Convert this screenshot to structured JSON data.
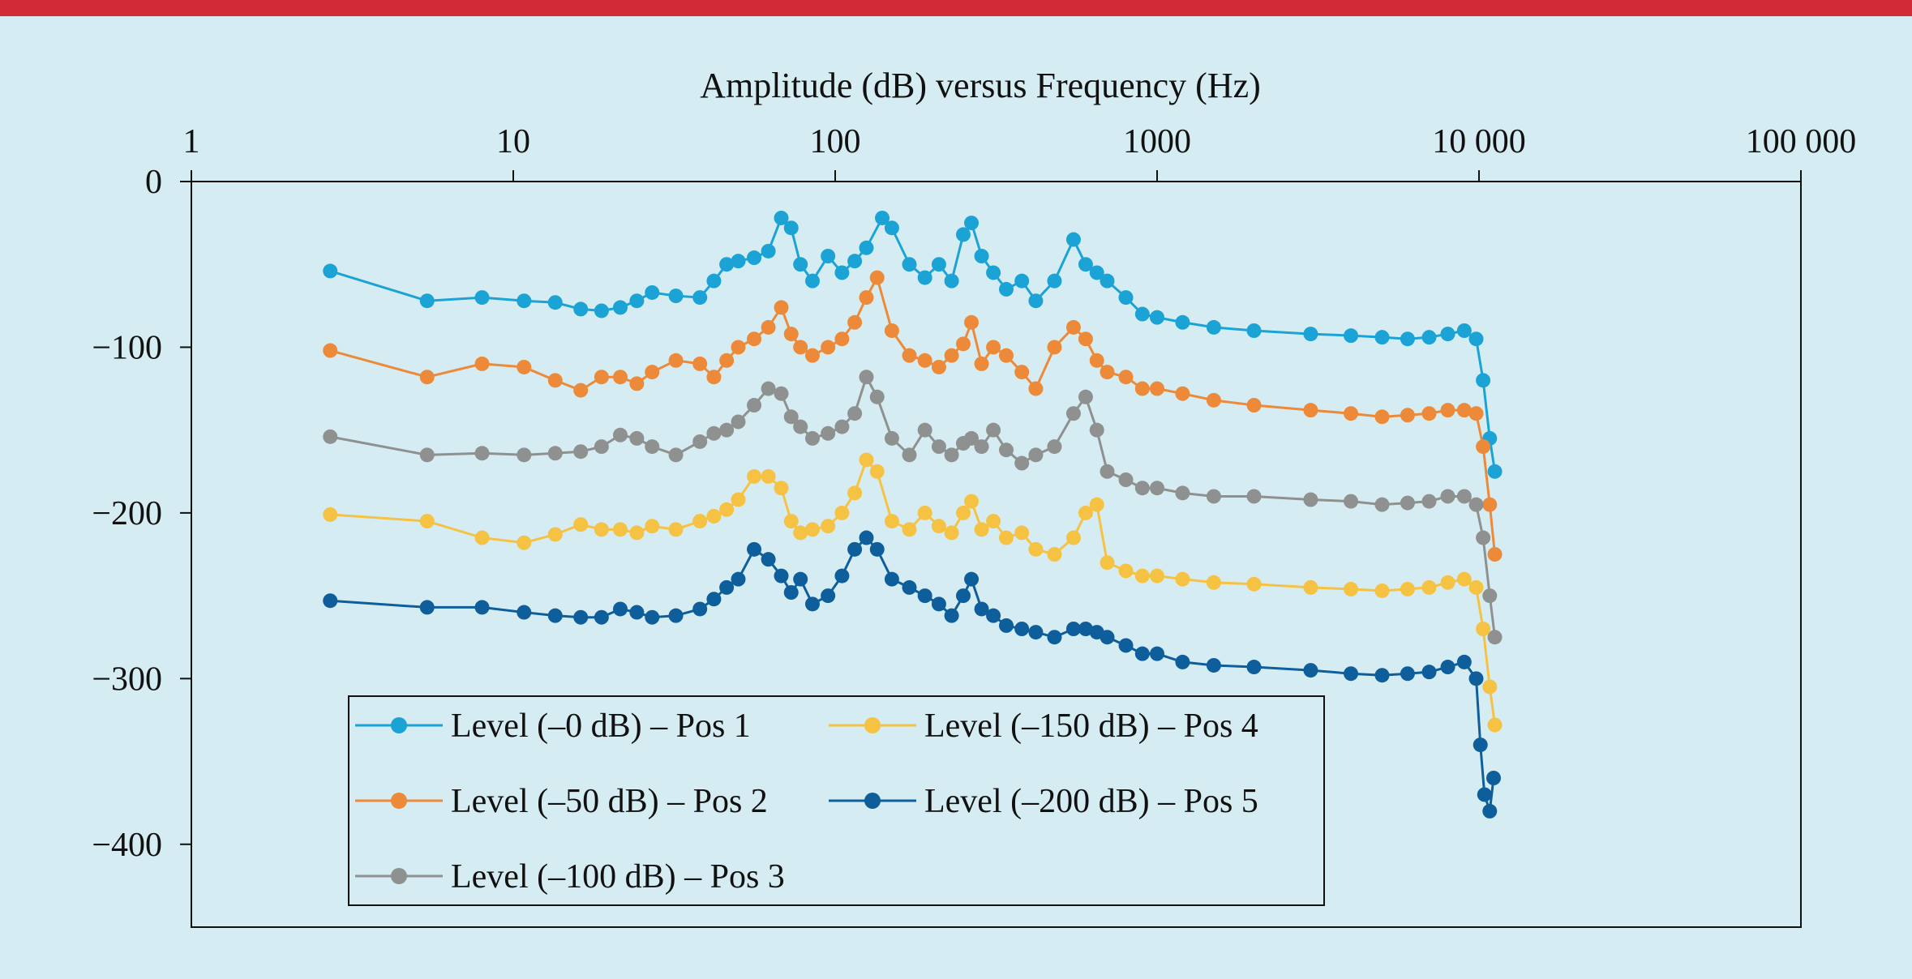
{
  "colors": {
    "background": "#d5edf2",
    "top_bar": "#d12b36",
    "axis": "#111111"
  },
  "chart_data": {
    "type": "line",
    "title": "Amplitude (dB) versus Frequency (Hz)",
    "xlabel": "",
    "ylabel": "",
    "x_scale": "log",
    "xlim": [
      1,
      100000
    ],
    "ylim": [
      -450,
      0
    ],
    "x_ticks": [
      1,
      10,
      100,
      1000,
      10000,
      100000
    ],
    "x_tick_labels": [
      "1",
      "10",
      "100",
      "1000",
      "10 000",
      "100 000"
    ],
    "y_ticks": [
      0,
      -100,
      -200,
      -300,
      -400
    ],
    "y_tick_labels": [
      "0",
      "−100",
      "−200",
      "−300",
      "−400"
    ],
    "grid": false,
    "legend_position": "bottom-left",
    "series": [
      {
        "name": "Level (–0 dB) – Pos 1",
        "color": "#1ba3d6",
        "x": [
          2.7,
          5.4,
          8,
          10.8,
          13.5,
          16.2,
          18.8,
          21.5,
          24.2,
          27,
          32,
          38,
          42,
          46,
          50,
          56,
          62,
          68,
          73,
          78,
          85,
          95,
          105,
          115,
          125,
          140,
          150,
          170,
          190,
          210,
          230,
          250,
          265,
          285,
          310,
          340,
          380,
          420,
          480,
          550,
          600,
          650,
          700,
          800,
          900,
          1000,
          1200,
          1500,
          2000,
          3000,
          4000,
          5000,
          6000,
          7000,
          8000,
          9000,
          9800,
          10300,
          10800,
          11200
        ],
        "y": [
          -54,
          -72,
          -70,
          -72,
          -73,
          -77,
          -78,
          -76,
          -72,
          -67,
          -69,
          -70,
          -60,
          -50,
          -48,
          -46,
          -42,
          -22,
          -28,
          -50,
          -60,
          -45,
          -55,
          -48,
          -40,
          -22,
          -28,
          -50,
          -58,
          -50,
          -60,
          -32,
          -25,
          -45,
          -55,
          -65,
          -60,
          -72,
          -60,
          -35,
          -50,
          -55,
          -60,
          -70,
          -80,
          -82,
          -85,
          -88,
          -90,
          -92,
          -93,
          -94,
          -95,
          -94,
          -92,
          -90,
          -95,
          -120,
          -155,
          -175
        ]
      },
      {
        "name": "Level (–50 dB) – Pos 2",
        "color": "#ec8a3a",
        "x": [
          2.7,
          5.4,
          8,
          10.8,
          13.5,
          16.2,
          18.8,
          21.5,
          24.2,
          27,
          32,
          38,
          42,
          46,
          50,
          56,
          62,
          68,
          73,
          78,
          85,
          95,
          105,
          115,
          125,
          135,
          150,
          170,
          190,
          210,
          230,
          250,
          265,
          285,
          310,
          340,
          380,
          420,
          480,
          550,
          600,
          650,
          700,
          800,
          900,
          1000,
          1200,
          1500,
          2000,
          3000,
          4000,
          5000,
          6000,
          7000,
          8000,
          9000,
          9800,
          10300,
          10800,
          11200
        ],
        "y": [
          -102,
          -118,
          -110,
          -112,
          -120,
          -126,
          -118,
          -118,
          -122,
          -115,
          -108,
          -110,
          -118,
          -108,
          -100,
          -95,
          -88,
          -76,
          -92,
          -100,
          -105,
          -100,
          -95,
          -85,
          -70,
          -58,
          -90,
          -105,
          -108,
          -112,
          -105,
          -98,
          -85,
          -110,
          -100,
          -105,
          -115,
          -125,
          -100,
          -88,
          -95,
          -108,
          -115,
          -118,
          -125,
          -125,
          -128,
          -132,
          -135,
          -138,
          -140,
          -142,
          -141,
          -140,
          -138,
          -138,
          -140,
          -160,
          -195,
          -225
        ]
      },
      {
        "name": "Level (–100 dB) – Pos 3",
        "color": "#8f9090",
        "x": [
          2.7,
          5.4,
          8,
          10.8,
          13.5,
          16.2,
          18.8,
          21.5,
          24.2,
          27,
          32,
          38,
          42,
          46,
          50,
          56,
          62,
          68,
          73,
          78,
          85,
          95,
          105,
          115,
          125,
          135,
          150,
          170,
          190,
          210,
          230,
          250,
          265,
          285,
          310,
          340,
          380,
          420,
          480,
          550,
          600,
          650,
          700,
          800,
          900,
          1000,
          1200,
          1500,
          2000,
          3000,
          4000,
          5000,
          6000,
          7000,
          8000,
          9000,
          9800,
          10300,
          10800,
          11200
        ],
        "y": [
          -154,
          -165,
          -164,
          -165,
          -164,
          -163,
          -160,
          -153,
          -155,
          -160,
          -165,
          -157,
          -152,
          -150,
          -145,
          -135,
          -125,
          -128,
          -142,
          -148,
          -155,
          -152,
          -148,
          -140,
          -118,
          -130,
          -155,
          -165,
          -150,
          -160,
          -165,
          -158,
          -155,
          -160,
          -150,
          -162,
          -170,
          -165,
          -160,
          -140,
          -130,
          -150,
          -175,
          -180,
          -185,
          -185,
          -188,
          -190,
          -190,
          -192,
          -193,
          -195,
          -194,
          -193,
          -190,
          -190,
          -195,
          -215,
          -250,
          -275
        ]
      },
      {
        "name": "Level (–150 dB) – Pos 4",
        "color": "#f6c244",
        "x": [
          2.7,
          5.4,
          8,
          10.8,
          13.5,
          16.2,
          18.8,
          21.5,
          24.2,
          27,
          32,
          38,
          42,
          46,
          50,
          56,
          62,
          68,
          73,
          78,
          85,
          95,
          105,
          115,
          125,
          135,
          150,
          170,
          190,
          210,
          230,
          250,
          265,
          285,
          310,
          340,
          380,
          420,
          480,
          550,
          600,
          650,
          700,
          800,
          900,
          1000,
          1200,
          1500,
          2000,
          3000,
          4000,
          5000,
          6000,
          7000,
          8000,
          9000,
          9800,
          10300,
          10800,
          11200
        ],
        "y": [
          -201,
          -205,
          -215,
          -218,
          -213,
          -207,
          -210,
          -210,
          -212,
          -208,
          -210,
          -205,
          -202,
          -198,
          -192,
          -178,
          -178,
          -185,
          -205,
          -212,
          -210,
          -208,
          -200,
          -188,
          -168,
          -175,
          -205,
          -210,
          -200,
          -208,
          -212,
          -200,
          -193,
          -210,
          -205,
          -215,
          -212,
          -222,
          -225,
          -215,
          -200,
          -195,
          -230,
          -235,
          -238,
          -238,
          -240,
          -242,
          -243,
          -245,
          -246,
          -247,
          -246,
          -245,
          -242,
          -240,
          -245,
          -270,
          -305,
          -328
        ]
      },
      {
        "name": "Level (–200 dB) – Pos 5",
        "color": "#0f5e9c",
        "x": [
          2.7,
          5.4,
          8,
          10.8,
          13.5,
          16.2,
          18.8,
          21.5,
          24.2,
          27,
          32,
          38,
          42,
          46,
          50,
          56,
          62,
          68,
          73,
          78,
          85,
          95,
          105,
          115,
          125,
          135,
          150,
          170,
          190,
          210,
          230,
          250,
          265,
          285,
          310,
          340,
          380,
          420,
          480,
          550,
          600,
          650,
          700,
          800,
          900,
          1000,
          1200,
          1500,
          2000,
          3000,
          4000,
          5000,
          6000,
          7000,
          8000,
          9000,
          9800,
          10100,
          10400,
          10800,
          11100
        ],
        "y": [
          -253,
          -257,
          -257,
          -260,
          -262,
          -263,
          -263,
          -258,
          -260,
          -263,
          -262,
          -258,
          -252,
          -245,
          -240,
          -222,
          -228,
          -238,
          -248,
          -240,
          -255,
          -250,
          -238,
          -222,
          -215,
          -222,
          -240,
          -245,
          -250,
          -255,
          -262,
          -250,
          -240,
          -258,
          -262,
          -268,
          -270,
          -272,
          -275,
          -270,
          -270,
          -272,
          -275,
          -280,
          -285,
          -285,
          -290,
          -292,
          -293,
          -295,
          -297,
          -298,
          -297,
          -296,
          -293,
          -290,
          -300,
          -340,
          -370,
          -380,
          -360
        ]
      }
    ]
  }
}
